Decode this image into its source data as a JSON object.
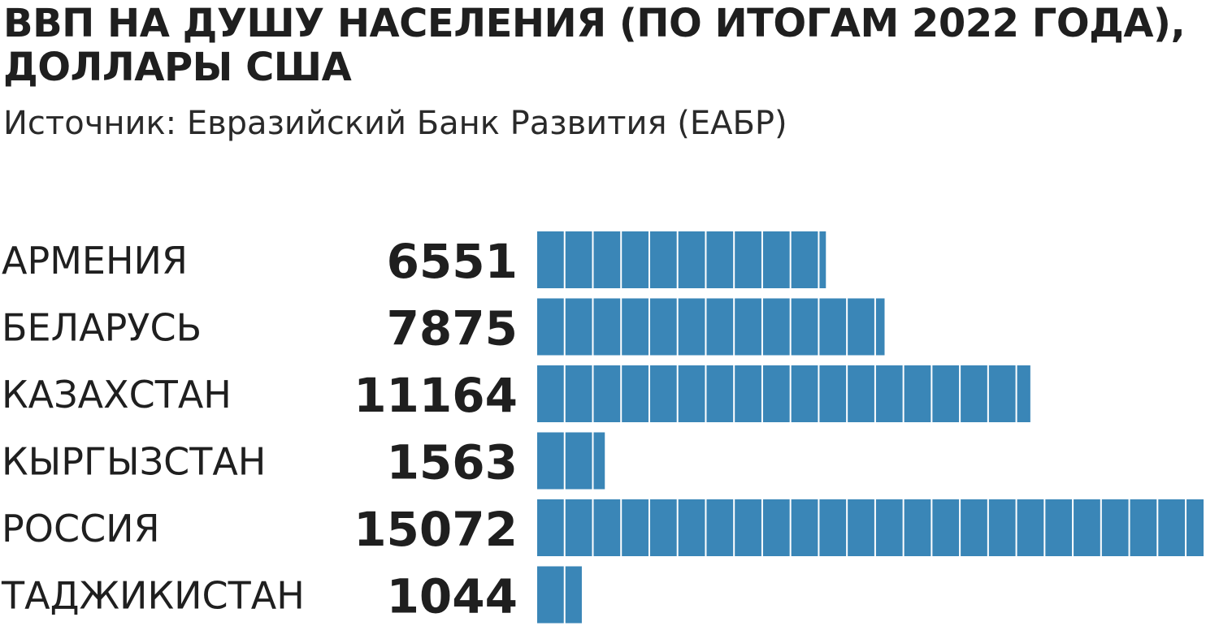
{
  "title": "ВВП НА ДУШУ НАСЕЛЕНИЯ (ПО ИТОГАМ 2022 ГОДА), ДОЛЛАРЫ США",
  "source": "Источник: Евразийский Банк Развития (ЕАБР)",
  "colors": {
    "bar": "#3a86b7",
    "text": "#1f1f1f"
  },
  "chart_data": {
    "type": "bar",
    "orientation": "horizontal",
    "title": "ВВП НА ДУШУ НАСЕЛЕНИЯ (ПО ИТОГАМ 2022 ГОДА), ДОЛЛАРЫ США",
    "categories": [
      "АРМЕНИЯ",
      "БЕЛАРУСЬ",
      "КАЗАХСТАН",
      "КЫРГЫЗСТАН",
      "РОССИЯ",
      "ТАДЖИКИСТАН"
    ],
    "values": [
      6551,
      7875,
      11164,
      1563,
      15072,
      1044
    ],
    "segment_value": 637,
    "grid": false,
    "legend": "none"
  }
}
